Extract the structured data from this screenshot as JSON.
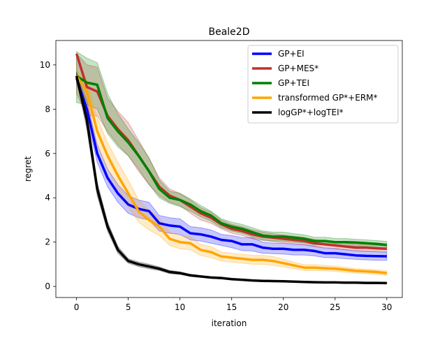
{
  "chart_data": {
    "type": "line",
    "title": "Beale2D",
    "xlabel": "iteration",
    "ylabel": "regret",
    "xlim": [
      -2,
      31.5
    ],
    "ylim": [
      -0.5,
      11.1
    ],
    "xticks": [
      0,
      5,
      10,
      15,
      20,
      25,
      30
    ],
    "yticks": [
      0,
      2,
      4,
      6,
      8,
      10
    ],
    "grid": false,
    "legend_position": "top-right",
    "x": [
      0,
      1,
      2,
      3,
      4,
      5,
      6,
      7,
      8,
      9,
      10,
      11,
      12,
      13,
      14,
      15,
      16,
      17,
      18,
      19,
      20,
      21,
      22,
      23,
      24,
      25,
      26,
      27,
      28,
      29,
      30
    ],
    "series": [
      {
        "name": "GP+EI",
        "color": "#0000ff",
        "values": [
          9.4,
          8.0,
          6.0,
          4.9,
          4.2,
          3.7,
          3.5,
          3.4,
          2.85,
          2.75,
          2.7,
          2.4,
          2.35,
          2.25,
          2.1,
          2.05,
          1.9,
          1.9,
          1.75,
          1.7,
          1.7,
          1.65,
          1.65,
          1.6,
          1.5,
          1.5,
          1.45,
          1.4,
          1.38,
          1.37,
          1.36
        ],
        "lower": [
          9.2,
          7.6,
          5.6,
          4.5,
          3.8,
          3.3,
          3.1,
          3.0,
          2.5,
          2.4,
          2.35,
          2.1,
          2.05,
          1.95,
          1.85,
          1.75,
          1.62,
          1.6,
          1.5,
          1.48,
          1.46,
          1.42,
          1.42,
          1.38,
          1.3,
          1.29,
          1.25,
          1.22,
          1.2,
          1.18,
          1.18
        ],
        "upper": [
          9.6,
          8.4,
          6.4,
          5.3,
          4.6,
          4.1,
          3.9,
          3.8,
          3.2,
          3.1,
          3.05,
          2.7,
          2.65,
          2.55,
          2.35,
          2.3,
          2.2,
          2.2,
          2.0,
          1.95,
          1.95,
          1.9,
          1.88,
          1.82,
          1.72,
          1.71,
          1.65,
          1.6,
          1.58,
          1.56,
          1.54
        ]
      },
      {
        "name": "GP+MES*",
        "color": "#c0302e",
        "values": [
          10.5,
          9.0,
          8.8,
          7.7,
          7.1,
          6.6,
          5.9,
          5.2,
          4.5,
          4.1,
          3.9,
          3.6,
          3.3,
          3.1,
          2.8,
          2.6,
          2.5,
          2.35,
          2.25,
          2.2,
          2.15,
          2.1,
          2.05,
          1.95,
          1.9,
          1.85,
          1.8,
          1.75,
          1.75,
          1.72,
          1.7
        ],
        "lower": [
          8.7,
          7.7,
          7.7,
          7.0,
          6.4,
          5.9,
          5.2,
          4.6,
          4.1,
          3.8,
          3.65,
          3.3,
          3.0,
          2.85,
          2.6,
          2.4,
          2.3,
          2.15,
          2.08,
          2.02,
          1.98,
          1.93,
          1.88,
          1.8,
          1.75,
          1.7,
          1.66,
          1.62,
          1.6,
          1.58,
          1.56
        ],
        "upper": [
          10.5,
          10.0,
          9.9,
          8.5,
          7.9,
          7.4,
          6.6,
          5.8,
          4.9,
          4.4,
          4.2,
          3.9,
          3.55,
          3.35,
          3.0,
          2.8,
          2.7,
          2.55,
          2.45,
          2.38,
          2.32,
          2.27,
          2.22,
          2.12,
          2.06,
          2.0,
          1.95,
          1.9,
          1.9,
          1.86,
          1.84
        ]
      },
      {
        "name": "GP+TEI",
        "color": "#008000",
        "values": [
          9.5,
          9.2,
          9.1,
          7.6,
          7.0,
          6.5,
          5.9,
          5.2,
          4.4,
          4.0,
          3.9,
          3.7,
          3.4,
          3.2,
          2.85,
          2.7,
          2.6,
          2.45,
          2.3,
          2.25,
          2.25,
          2.2,
          2.15,
          2.05,
          2.05,
          2.0,
          2.0,
          1.98,
          1.95,
          1.92,
          1.87
        ],
        "lower": [
          8.3,
          8.2,
          8.0,
          6.9,
          6.3,
          5.9,
          5.3,
          4.6,
          4.0,
          3.75,
          3.6,
          3.4,
          3.15,
          2.95,
          2.65,
          2.5,
          2.4,
          2.25,
          2.1,
          2.05,
          2.05,
          2.0,
          1.96,
          1.88,
          1.88,
          1.84,
          1.84,
          1.82,
          1.8,
          1.77,
          1.72
        ],
        "upper": [
          10.6,
          10.3,
          10.1,
          8.7,
          7.8,
          7.1,
          6.5,
          5.8,
          4.8,
          4.3,
          4.2,
          3.95,
          3.65,
          3.4,
          3.05,
          2.9,
          2.8,
          2.65,
          2.5,
          2.45,
          2.45,
          2.38,
          2.33,
          2.22,
          2.22,
          2.16,
          2.16,
          2.13,
          2.1,
          2.07,
          2.03
        ]
      },
      {
        "name": "transformed GP*+ERM*",
        "color": "#ffa500",
        "values": [
          9.5,
          8.8,
          7.0,
          5.9,
          5.0,
          4.2,
          3.4,
          3.0,
          2.7,
          2.15,
          2.0,
          1.95,
          1.65,
          1.55,
          1.35,
          1.3,
          1.25,
          1.2,
          1.2,
          1.15,
          1.05,
          0.95,
          0.85,
          0.85,
          0.82,
          0.8,
          0.75,
          0.7,
          0.68,
          0.65,
          0.6
        ],
        "lower": [
          9.3,
          8.3,
          6.4,
          5.3,
          4.4,
          3.6,
          2.9,
          2.55,
          2.3,
          1.85,
          1.7,
          1.65,
          1.4,
          1.3,
          1.15,
          1.1,
          1.05,
          1.0,
          1.0,
          0.95,
          0.88,
          0.8,
          0.72,
          0.72,
          0.7,
          0.68,
          0.64,
          0.6,
          0.58,
          0.55,
          0.5
        ],
        "upper": [
          9.7,
          9.3,
          7.6,
          6.5,
          5.6,
          4.8,
          3.9,
          3.45,
          3.1,
          2.45,
          2.3,
          2.25,
          1.9,
          1.8,
          1.55,
          1.5,
          1.45,
          1.4,
          1.4,
          1.35,
          1.22,
          1.1,
          0.98,
          0.98,
          0.95,
          0.92,
          0.86,
          0.8,
          0.78,
          0.75,
          0.7
        ]
      },
      {
        "name": "logGP*+logTEI*",
        "color": "#000000",
        "values": [
          9.5,
          7.5,
          4.4,
          2.7,
          1.65,
          1.15,
          1.0,
          0.9,
          0.8,
          0.65,
          0.6,
          0.5,
          0.45,
          0.4,
          0.38,
          0.33,
          0.3,
          0.27,
          0.25,
          0.24,
          0.23,
          0.22,
          0.2,
          0.19,
          0.18,
          0.18,
          0.17,
          0.17,
          0.16,
          0.16,
          0.15
        ],
        "lower": [
          9.3,
          7.1,
          4.1,
          2.5,
          1.5,
          1.05,
          0.9,
          0.8,
          0.72,
          0.58,
          0.54,
          0.45,
          0.41,
          0.36,
          0.34,
          0.3,
          0.27,
          0.24,
          0.22,
          0.21,
          0.2,
          0.19,
          0.17,
          0.16,
          0.15,
          0.15,
          0.14,
          0.14,
          0.13,
          0.13,
          0.12
        ],
        "upper": [
          9.7,
          7.9,
          4.7,
          2.9,
          1.8,
          1.25,
          1.1,
          1.0,
          0.88,
          0.72,
          0.66,
          0.55,
          0.49,
          0.44,
          0.42,
          0.36,
          0.33,
          0.3,
          0.28,
          0.27,
          0.26,
          0.25,
          0.23,
          0.22,
          0.21,
          0.21,
          0.2,
          0.2,
          0.19,
          0.19,
          0.18
        ]
      }
    ]
  }
}
